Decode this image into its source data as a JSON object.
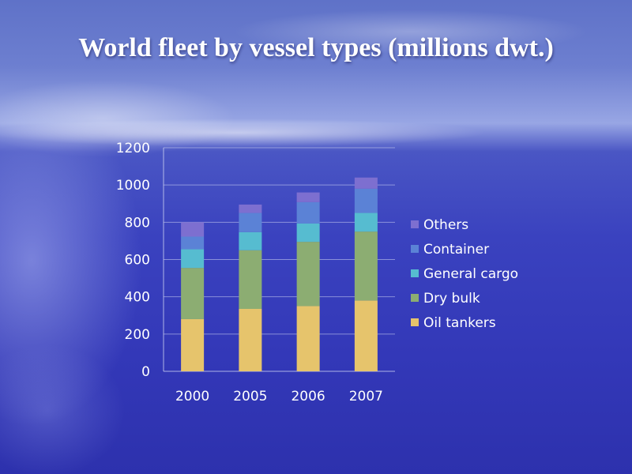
{
  "slide": {
    "title": "World fleet by vessel types (millions dwt.)"
  },
  "chart_data": {
    "type": "bar",
    "stacked": true,
    "title": "World fleet by vessel types (millions dwt.)",
    "categories": [
      "2000",
      "2005",
      "2006",
      "2007"
    ],
    "series": [
      {
        "name": "Oil tankers",
        "values": [
          280,
          335,
          350,
          380
        ],
        "color": "#e6c46c"
      },
      {
        "name": "Dry bulk",
        "values": [
          275,
          315,
          345,
          370
        ],
        "color": "#8cad72"
      },
      {
        "name": "General cargo",
        "values": [
          100,
          97,
          98,
          100
        ],
        "color": "#56bcd0"
      },
      {
        "name": "Container",
        "values": [
          68,
          103,
          115,
          130
        ],
        "color": "#5b82d6"
      },
      {
        "name": "Others",
        "values": [
          77,
          45,
          52,
          60
        ],
        "color": "#7d6fd0"
      }
    ],
    "yticks": [
      0,
      200,
      400,
      600,
      800,
      1000,
      1200
    ],
    "ylim": [
      0,
      1200
    ],
    "grid": true,
    "legend": "right"
  }
}
